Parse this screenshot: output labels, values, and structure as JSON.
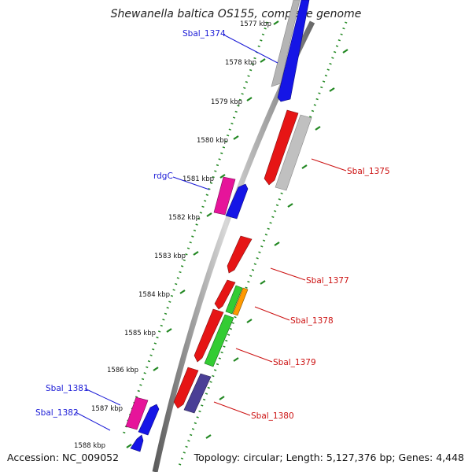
{
  "title": "Shewanella baltica OS155, complete genome",
  "footer": {
    "accession": "Accession: NC_009052",
    "summary": "Topology: circular; Length: 5,127,376 bp; Genes: 4,448"
  },
  "colors": {
    "forward_cds": "#1515e6",
    "reverse_cds": "#e61515",
    "rna": "#e6149a",
    "green_feature": "#33cc33",
    "orange_feature": "#ff9900",
    "purple_feature": "#4a3f96",
    "grey_feature": "#b5b5b5",
    "backbone": "#888888",
    "ticks": "#228822",
    "label_blue": "#1a1ad6",
    "label_red": "#cc1111"
  },
  "kbp_labels": [
    "1577 kbp",
    "1578 kbp",
    "1579 kbp",
    "1580 kbp",
    "1581 kbp",
    "1582 kbp",
    "1583 kbp",
    "1584 kbp",
    "1585 kbp",
    "1586 kbp",
    "1587 kbp",
    "1588 kbp"
  ],
  "gene_labels": {
    "Sbal_1374": "Sbal_1374",
    "rdgC": "rdgC",
    "Sbal_1381": "Sbal_1381",
    "Sbal_1382": "Sbal_1382",
    "Sbal_1375": "Sbal_1375",
    "Sbal_1377": "Sbal_1377",
    "Sbal_1378": "Sbal_1378",
    "Sbal_1379": "Sbal_1379",
    "Sbal_1380": "Sbal_1380"
  }
}
